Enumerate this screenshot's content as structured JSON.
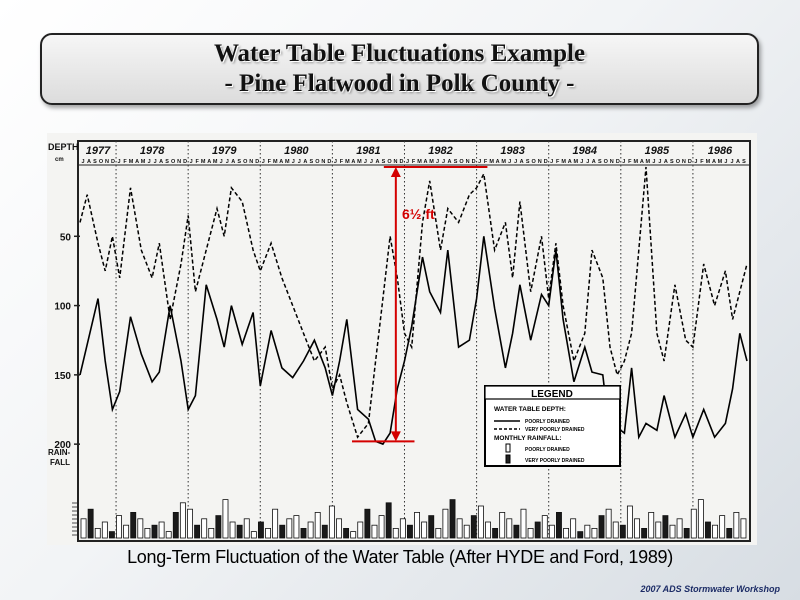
{
  "title": {
    "line1": "Water Table Fluctuations Example",
    "line2": "- Pine Flatwood in Polk County -"
  },
  "caption": "Long-Term Fluctuation of the Water Table (After HYDE and Ford, 1989)",
  "footer": "2007 ADS Stormwater Workshop",
  "annotation": {
    "label": "6½ ft",
    "color": "#d40000"
  },
  "chart_data": {
    "type": "line",
    "ylabel": "DEPTH",
    "ylabel_unit": "cm",
    "rain_label_1": "RAIN-",
    "rain_label_2": "FALL",
    "ylim": [
      0,
      210
    ],
    "y_inverted": true,
    "y_ticks": [
      "50",
      "100",
      "150",
      "200"
    ],
    "y_tick_values": [
      50,
      100,
      150,
      200
    ],
    "years": [
      "1977",
      "1978",
      "1979",
      "1980",
      "1981",
      "1982",
      "1983",
      "1984",
      "1985",
      "1986"
    ],
    "month_letters": [
      "J",
      "F",
      "M",
      "A",
      "M",
      "J",
      "J",
      "A",
      "S",
      "O",
      "N",
      "D"
    ],
    "x_start_year": 1977.5,
    "x_end_year": 1986.75,
    "grid": false,
    "series": [
      {
        "name": "POORLY DRAINED",
        "style": "solid",
        "points": [
          [
            1977.5,
            150
          ],
          [
            1977.6,
            128
          ],
          [
            1977.75,
            95
          ],
          [
            1977.85,
            140
          ],
          [
            1977.95,
            175
          ],
          [
            1978.05,
            162
          ],
          [
            1978.2,
            108
          ],
          [
            1978.35,
            135
          ],
          [
            1978.5,
            155
          ],
          [
            1978.6,
            148
          ],
          [
            1978.75,
            100
          ],
          [
            1978.9,
            140
          ],
          [
            1979.0,
            175
          ],
          [
            1979.1,
            165
          ],
          [
            1979.25,
            85
          ],
          [
            1979.4,
            110
          ],
          [
            1979.5,
            130
          ],
          [
            1979.6,
            100
          ],
          [
            1979.75,
            128
          ],
          [
            1979.9,
            105
          ],
          [
            1980.0,
            158
          ],
          [
            1980.15,
            118
          ],
          [
            1980.3,
            145
          ],
          [
            1980.45,
            152
          ],
          [
            1980.6,
            140
          ],
          [
            1980.75,
            125
          ],
          [
            1980.9,
            145
          ],
          [
            1981.0,
            165
          ],
          [
            1981.1,
            140
          ],
          [
            1981.2,
            110
          ],
          [
            1981.35,
            175
          ],
          [
            1981.5,
            182
          ],
          [
            1981.6,
            198
          ],
          [
            1981.7,
            200
          ],
          [
            1981.8,
            192
          ],
          [
            1981.9,
            160
          ],
          [
            1982.0,
            140
          ],
          [
            1982.1,
            115
          ],
          [
            1982.25,
            65
          ],
          [
            1982.35,
            90
          ],
          [
            1982.5,
            105
          ],
          [
            1982.6,
            60
          ],
          [
            1982.75,
            130
          ],
          [
            1982.9,
            125
          ],
          [
            1983.0,
            95
          ],
          [
            1983.1,
            50
          ],
          [
            1983.25,
            102
          ],
          [
            1983.4,
            145
          ],
          [
            1983.5,
            120
          ],
          [
            1983.6,
            85
          ],
          [
            1983.75,
            125
          ],
          [
            1983.9,
            92
          ],
          [
            1984.0,
            100
          ],
          [
            1984.1,
            60
          ],
          [
            1984.2,
            110
          ],
          [
            1984.35,
            155
          ],
          [
            1984.5,
            130
          ],
          [
            1984.6,
            148
          ],
          [
            1984.75,
            150
          ],
          [
            1984.85,
            195
          ],
          [
            1984.95,
            188
          ],
          [
            1985.05,
            192
          ],
          [
            1985.15,
            145
          ],
          [
            1985.25,
            195
          ],
          [
            1985.35,
            185
          ],
          [
            1985.5,
            190
          ],
          [
            1985.6,
            165
          ],
          [
            1985.75,
            195
          ],
          [
            1985.9,
            178
          ],
          [
            1986.0,
            195
          ],
          [
            1986.15,
            175
          ],
          [
            1986.3,
            195
          ],
          [
            1986.45,
            185
          ],
          [
            1986.55,
            160
          ],
          [
            1986.65,
            120
          ],
          [
            1986.75,
            140
          ]
        ]
      },
      {
        "name": "VERY POORLY DRAINED",
        "style": "dashed",
        "points": [
          [
            1977.5,
            40
          ],
          [
            1977.6,
            20
          ],
          [
            1977.75,
            55
          ],
          [
            1977.85,
            75
          ],
          [
            1977.95,
            50
          ],
          [
            1978.05,
            80
          ],
          [
            1978.2,
            15
          ],
          [
            1978.35,
            60
          ],
          [
            1978.5,
            80
          ],
          [
            1978.6,
            55
          ],
          [
            1978.75,
            110
          ],
          [
            1978.9,
            70
          ],
          [
            1979.0,
            35
          ],
          [
            1979.1,
            90
          ],
          [
            1979.25,
            60
          ],
          [
            1979.4,
            30
          ],
          [
            1979.5,
            50
          ],
          [
            1979.6,
            15
          ],
          [
            1979.75,
            25
          ],
          [
            1979.9,
            60
          ],
          [
            1980.0,
            75
          ],
          [
            1980.15,
            55
          ],
          [
            1980.3,
            80
          ],
          [
            1980.45,
            100
          ],
          [
            1980.6,
            120
          ],
          [
            1980.75,
            140
          ],
          [
            1980.9,
            130
          ],
          [
            1981.0,
            160
          ],
          [
            1981.1,
            150
          ],
          [
            1981.2,
            170
          ],
          [
            1981.35,
            195
          ],
          [
            1981.5,
            185
          ],
          [
            1981.6,
            140
          ],
          [
            1981.7,
            95
          ],
          [
            1981.8,
            50
          ],
          [
            1981.9,
            80
          ],
          [
            1982.0,
            120
          ],
          [
            1982.1,
            130
          ],
          [
            1982.25,
            40
          ],
          [
            1982.35,
            10
          ],
          [
            1982.5,
            60
          ],
          [
            1982.6,
            30
          ],
          [
            1982.75,
            40
          ],
          [
            1982.9,
            20
          ],
          [
            1983.0,
            15
          ],
          [
            1983.1,
            5
          ],
          [
            1983.25,
            60
          ],
          [
            1983.4,
            40
          ],
          [
            1983.5,
            80
          ],
          [
            1983.6,
            25
          ],
          [
            1983.75,
            90
          ],
          [
            1983.9,
            50
          ],
          [
            1984.0,
            95
          ],
          [
            1984.1,
            55
          ],
          [
            1984.2,
            100
          ],
          [
            1984.35,
            140
          ],
          [
            1984.5,
            120
          ],
          [
            1984.6,
            60
          ],
          [
            1984.75,
            80
          ],
          [
            1984.85,
            130
          ],
          [
            1984.95,
            150
          ],
          [
            1985.05,
            140
          ],
          [
            1985.15,
            120
          ],
          [
            1985.25,
            60
          ],
          [
            1985.35,
            0
          ],
          [
            1985.5,
            120
          ],
          [
            1985.6,
            140
          ],
          [
            1985.75,
            85
          ],
          [
            1985.9,
            125
          ],
          [
            1986.0,
            130
          ],
          [
            1986.15,
            70
          ],
          [
            1986.3,
            100
          ],
          [
            1986.45,
            75
          ],
          [
            1986.55,
            110
          ],
          [
            1986.65,
            90
          ],
          [
            1986.75,
            70
          ]
        ]
      }
    ],
    "rainfall_bars": [
      6,
      9,
      3,
      5,
      2,
      7,
      4,
      8,
      6,
      3,
      4,
      5,
      2,
      8,
      11,
      9,
      4,
      6,
      3,
      7,
      12,
      5,
      4,
      6,
      2,
      5,
      3,
      9,
      4,
      6,
      7,
      3,
      5,
      8,
      4,
      10,
      6,
      3,
      2,
      5,
      9,
      4,
      7,
      11,
      3,
      6,
      4,
      8,
      5,
      7,
      3,
      9,
      12,
      6,
      4,
      7,
      10,
      5,
      3,
      8,
      6,
      4,
      9,
      3,
      5,
      7,
      4,
      8,
      3,
      6,
      2,
      4,
      3,
      7,
      9,
      5,
      4,
      10,
      6,
      3,
      8,
      5,
      7,
      4,
      6,
      3,
      9,
      12,
      5,
      4,
      7,
      3,
      8,
      6
    ],
    "legend": {
      "title": "LEGEND",
      "heading1": "WATER TABLE DEPTH:",
      "item1": "POORLY DRAINED",
      "item2": "VERY POORLY DRAINED",
      "heading2": "MONTHLY RAINFALL:",
      "item3": "POORLY DRAINED",
      "item4": "VERY POORLY DRAINED"
    }
  }
}
